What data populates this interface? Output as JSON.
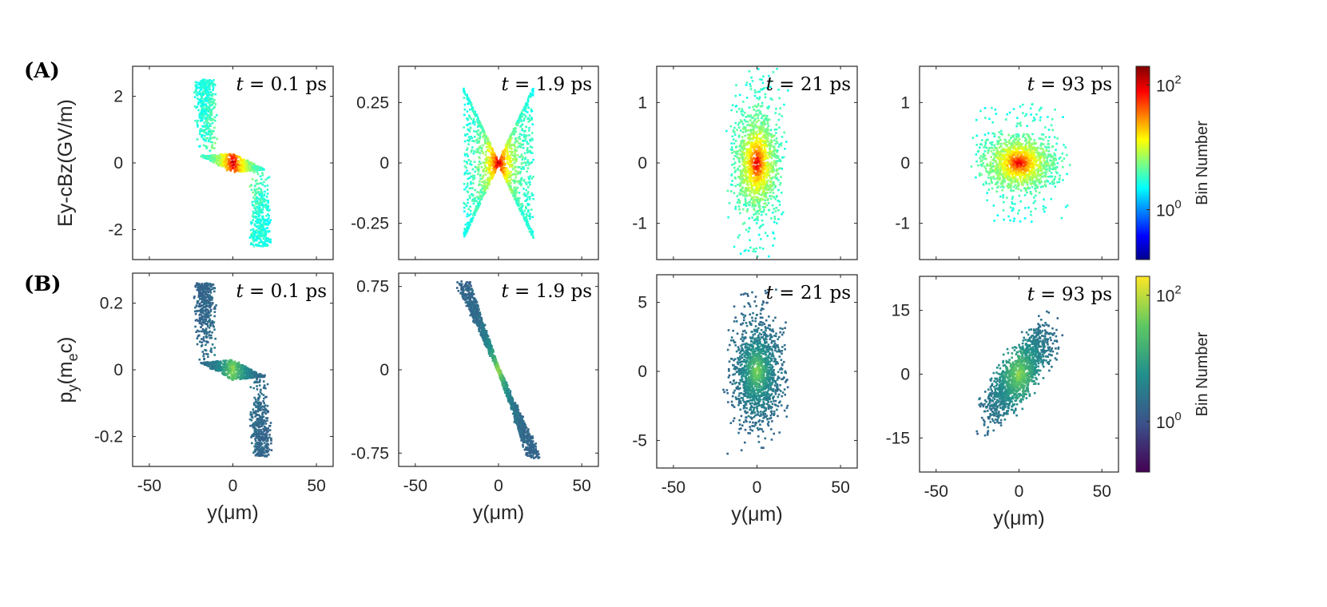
{
  "figure": {
    "row_labels": [
      "(A)",
      "(B)"
    ]
  },
  "chart_data": [
    {
      "type": "scatter",
      "row": "A",
      "title": "t = 0.1 ps",
      "time": "0.1 ps",
      "xlabel": "",
      "ylabel": "Ey-cBz(GV/m)",
      "xlim": [
        -60,
        60
      ],
      "ylim": [
        -2.9,
        2.9
      ],
      "xticks": [
        -50,
        0,
        50
      ],
      "yticks": [
        2,
        0,
        -2
      ],
      "ytick_labels": [
        "2",
        "0",
        "-2"
      ],
      "colormap": "jet",
      "shape": "slope",
      "spread_y": 2.5,
      "spread_x": 21
    },
    {
      "type": "scatter",
      "row": "A",
      "title": "t = 1.9 ps",
      "time": "1.9 ps",
      "xlabel": "",
      "ylabel": "",
      "xlim": [
        -60,
        60
      ],
      "ylim": [
        -0.4,
        0.4
      ],
      "xticks": [
        -50,
        0,
        50
      ],
      "yticks": [
        0.25,
        0,
        -0.25
      ],
      "ytick_labels": [
        "0.25",
        "0",
        "-0.25"
      ],
      "colormap": "jet",
      "shape": "bowtie",
      "spread_y": 0.32,
      "spread_x": 21
    },
    {
      "type": "scatter",
      "row": "A",
      "title": "t = 21 ps",
      "time": "21 ps",
      "xlabel": "",
      "ylabel": "",
      "xlim": [
        -60,
        60
      ],
      "ylim": [
        -1.6,
        1.6
      ],
      "xticks": [
        -50,
        0,
        50
      ],
      "yticks": [
        1,
        0,
        -1
      ],
      "ytick_labels": [
        "1",
        "0",
        "-1"
      ],
      "colormap": "jet",
      "shape": "blob",
      "spread_y": 1.3,
      "spread_x": 20
    },
    {
      "type": "scatter",
      "row": "A",
      "title": "t = 93 ps",
      "time": "93 ps",
      "xlabel": "",
      "ylabel": "",
      "xlim": [
        -60,
        60
      ],
      "ylim": [
        -1.6,
        1.6
      ],
      "xticks": [
        -50,
        0,
        50
      ],
      "yticks": [
        1,
        0,
        -1
      ],
      "ytick_labels": [
        "1",
        "0",
        "-1"
      ],
      "colormap": "jet",
      "shape": "wide",
      "spread_y": 0.75,
      "spread_x": 33
    },
    {
      "type": "scatter",
      "row": "B",
      "title": "t = 0.1 ps",
      "time": "0.1 ps",
      "xlabel": "y(μm)",
      "ylabel": "p_y(m_e c)",
      "xlim": [
        -60,
        60
      ],
      "ylim": [
        -0.29,
        0.29
      ],
      "xticks": [
        -50,
        0,
        50
      ],
      "yticks": [
        0.2,
        0,
        -0.2
      ],
      "ytick_labels": [
        "0.2",
        "0",
        "-0.2"
      ],
      "colormap": "parula",
      "shape": "slope",
      "spread_y": 0.26,
      "spread_x": 21
    },
    {
      "type": "scatter",
      "row": "B",
      "title": "t = 1.9 ps",
      "time": "1.9 ps",
      "xlabel": "y(μm)",
      "ylabel": "",
      "xlim": [
        -60,
        60
      ],
      "ylim": [
        -0.87,
        0.87
      ],
      "xticks": [
        -50,
        0,
        50
      ],
      "yticks": [
        0.75,
        0,
        -0.75
      ],
      "ytick_labels": [
        "0.75",
        "0",
        "-0.75"
      ],
      "colormap": "parula",
      "shape": "line",
      "spread_y": 0.84,
      "spread_x": 21
    },
    {
      "type": "scatter",
      "row": "B",
      "title": "t = 21 ps",
      "time": "21 ps",
      "xlabel": "y(μm)",
      "ylabel": "",
      "xlim": [
        -60,
        60
      ],
      "ylim": [
        -7,
        7
      ],
      "xticks": [
        -50,
        0,
        50
      ],
      "yticks": [
        5,
        0,
        -5
      ],
      "ytick_labels": [
        "5",
        "0",
        "-5"
      ],
      "colormap": "parula",
      "shape": "blob",
      "spread_y": 5,
      "spread_x": 21
    },
    {
      "type": "scatter",
      "row": "B",
      "title": "t = 93 ps",
      "time": "93 ps",
      "xlabel": "y(μm)",
      "ylabel": "",
      "xlim": [
        -60,
        60
      ],
      "ylim": [
        -23,
        23
      ],
      "xticks": [
        -50,
        0,
        50
      ],
      "yticks": [
        15,
        0,
        -15
      ],
      "ytick_labels": [
        "15",
        "0",
        "-15"
      ],
      "colormap": "parula",
      "shape": "diag",
      "spread_y": 20,
      "spread_x": 33
    }
  ],
  "colorbars": [
    {
      "row": "A",
      "colormap": "jet",
      "label": "Bin Number",
      "ticks": [
        {
          "base": "10",
          "exp": "2",
          "value": 100
        },
        {
          "base": "10",
          "exp": "0",
          "value": 1
        }
      ]
    },
    {
      "row": "B",
      "colormap": "parula",
      "label": "Bin Number",
      "ticks": [
        {
          "base": "10",
          "exp": "2",
          "value": 100
        },
        {
          "base": "10",
          "exp": "0",
          "value": 1
        }
      ]
    }
  ]
}
